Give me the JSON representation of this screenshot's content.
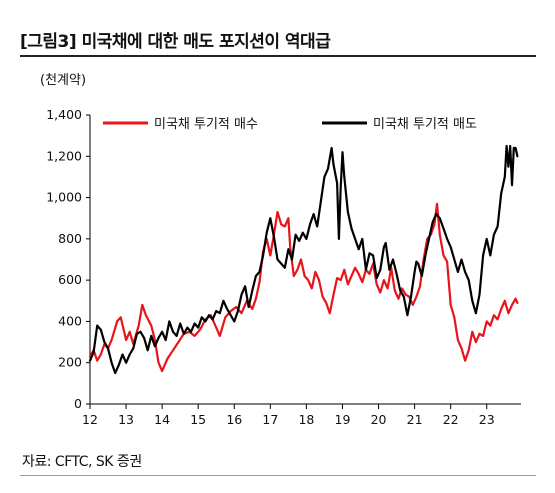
{
  "title": "[그림3] 미국채에 대한 매도 포지션이 역대급",
  "source": "자료: CFTC, SK 증권",
  "chart_data": {
    "type": "line",
    "unit_label": "(천계약)",
    "ylim": [
      0,
      1400
    ],
    "yticks": [
      0,
      200,
      400,
      600,
      800,
      "1,000",
      "1,200",
      "1,400"
    ],
    "xlim": [
      12,
      23.95
    ],
    "xticks": [
      "12",
      "13",
      "14",
      "15",
      "16",
      "17",
      "18",
      "19",
      "20",
      "21",
      "22",
      "23"
    ],
    "legend_position": "top",
    "series": [
      {
        "name": "미국채 투기적 매수",
        "color": "#e8141b",
        "points": [
          [
            12.0,
            230
          ],
          [
            12.1,
            260
          ],
          [
            12.2,
            210
          ],
          [
            12.3,
            240
          ],
          [
            12.4,
            290
          ],
          [
            12.5,
            270
          ],
          [
            12.6,
            310
          ],
          [
            12.75,
            400
          ],
          [
            12.85,
            420
          ],
          [
            13.0,
            310
          ],
          [
            13.1,
            350
          ],
          [
            13.2,
            290
          ],
          [
            13.35,
            380
          ],
          [
            13.45,
            480
          ],
          [
            13.55,
            430
          ],
          [
            13.7,
            380
          ],
          [
            13.8,
            310
          ],
          [
            13.9,
            200
          ],
          [
            14.0,
            160
          ],
          [
            14.15,
            220
          ],
          [
            14.3,
            260
          ],
          [
            14.45,
            300
          ],
          [
            14.6,
            340
          ],
          [
            14.75,
            350
          ],
          [
            14.9,
            330
          ],
          [
            15.05,
            360
          ],
          [
            15.2,
            410
          ],
          [
            15.35,
            430
          ],
          [
            15.5,
            370
          ],
          [
            15.6,
            330
          ],
          [
            15.75,
            420
          ],
          [
            15.9,
            450
          ],
          [
            16.05,
            470
          ],
          [
            16.2,
            440
          ],
          [
            16.35,
            500
          ],
          [
            16.5,
            460
          ],
          [
            16.6,
            510
          ],
          [
            16.7,
            590
          ],
          [
            16.8,
            740
          ],
          [
            16.9,
            800
          ],
          [
            17.0,
            720
          ],
          [
            17.1,
            820
          ],
          [
            17.2,
            930
          ],
          [
            17.3,
            870
          ],
          [
            17.4,
            860
          ],
          [
            17.5,
            900
          ],
          [
            17.55,
            760
          ],
          [
            17.65,
            620
          ],
          [
            17.75,
            650
          ],
          [
            17.85,
            700
          ],
          [
            17.95,
            620
          ],
          [
            18.05,
            600
          ],
          [
            18.15,
            560
          ],
          [
            18.25,
            640
          ],
          [
            18.35,
            600
          ],
          [
            18.45,
            520
          ],
          [
            18.55,
            490
          ],
          [
            18.65,
            440
          ],
          [
            18.75,
            530
          ],
          [
            18.85,
            610
          ],
          [
            18.95,
            600
          ],
          [
            19.05,
            650
          ],
          [
            19.15,
            580
          ],
          [
            19.25,
            620
          ],
          [
            19.35,
            660
          ],
          [
            19.45,
            630
          ],
          [
            19.55,
            590
          ],
          [
            19.65,
            650
          ],
          [
            19.75,
            630
          ],
          [
            19.85,
            680
          ],
          [
            19.95,
            580
          ],
          [
            20.05,
            540
          ],
          [
            20.15,
            600
          ],
          [
            20.25,
            560
          ],
          [
            20.35,
            660
          ],
          [
            20.45,
            550
          ],
          [
            20.55,
            510
          ],
          [
            20.65,
            560
          ],
          [
            20.75,
            530
          ],
          [
            20.85,
            520
          ],
          [
            20.95,
            480
          ],
          [
            21.05,
            520
          ],
          [
            21.15,
            570
          ],
          [
            21.25,
            700
          ],
          [
            21.35,
            800
          ],
          [
            21.45,
            820
          ],
          [
            21.55,
            870
          ],
          [
            21.62,
            970
          ],
          [
            21.7,
            820
          ],
          [
            21.8,
            720
          ],
          [
            21.9,
            690
          ],
          [
            22.0,
            480
          ],
          [
            22.1,
            420
          ],
          [
            22.2,
            310
          ],
          [
            22.3,
            270
          ],
          [
            22.4,
            210
          ],
          [
            22.5,
            260
          ],
          [
            22.6,
            350
          ],
          [
            22.7,
            300
          ],
          [
            22.8,
            340
          ],
          [
            22.9,
            330
          ],
          [
            23.0,
            400
          ],
          [
            23.1,
            380
          ],
          [
            23.2,
            430
          ],
          [
            23.3,
            410
          ],
          [
            23.4,
            460
          ],
          [
            23.5,
            500
          ],
          [
            23.6,
            440
          ],
          [
            23.7,
            480
          ],
          [
            23.8,
            510
          ],
          [
            23.85,
            490
          ]
        ]
      },
      {
        "name": "미국채 투기적 매도",
        "color": "#000000",
        "points": [
          [
            12.0,
            210
          ],
          [
            12.1,
            250
          ],
          [
            12.2,
            380
          ],
          [
            12.3,
            360
          ],
          [
            12.4,
            300
          ],
          [
            12.5,
            270
          ],
          [
            12.6,
            200
          ],
          [
            12.7,
            150
          ],
          [
            12.8,
            190
          ],
          [
            12.9,
            240
          ],
          [
            13.0,
            200
          ],
          [
            13.1,
            240
          ],
          [
            13.2,
            270
          ],
          [
            13.3,
            340
          ],
          [
            13.4,
            350
          ],
          [
            13.5,
            320
          ],
          [
            13.6,
            260
          ],
          [
            13.7,
            330
          ],
          [
            13.8,
            280
          ],
          [
            13.9,
            320
          ],
          [
            14.0,
            350
          ],
          [
            14.1,
            310
          ],
          [
            14.2,
            400
          ],
          [
            14.3,
            350
          ],
          [
            14.4,
            330
          ],
          [
            14.5,
            390
          ],
          [
            14.6,
            340
          ],
          [
            14.7,
            370
          ],
          [
            14.8,
            350
          ],
          [
            14.9,
            390
          ],
          [
            15.0,
            370
          ],
          [
            15.1,
            420
          ],
          [
            15.2,
            400
          ],
          [
            15.3,
            430
          ],
          [
            15.4,
            410
          ],
          [
            15.5,
            450
          ],
          [
            15.6,
            440
          ],
          [
            15.7,
            500
          ],
          [
            15.8,
            460
          ],
          [
            15.9,
            430
          ],
          [
            16.0,
            400
          ],
          [
            16.1,
            450
          ],
          [
            16.2,
            530
          ],
          [
            16.3,
            570
          ],
          [
            16.4,
            470
          ],
          [
            16.5,
            550
          ],
          [
            16.6,
            620
          ],
          [
            16.7,
            640
          ],
          [
            16.8,
            720
          ],
          [
            16.9,
            830
          ],
          [
            17.0,
            900
          ],
          [
            17.1,
            810
          ],
          [
            17.2,
            700
          ],
          [
            17.3,
            680
          ],
          [
            17.4,
            660
          ],
          [
            17.5,
            750
          ],
          [
            17.6,
            700
          ],
          [
            17.7,
            820
          ],
          [
            17.8,
            790
          ],
          [
            17.9,
            830
          ],
          [
            18.0,
            800
          ],
          [
            18.1,
            870
          ],
          [
            18.2,
            920
          ],
          [
            18.3,
            860
          ],
          [
            18.4,
            980
          ],
          [
            18.5,
            1100
          ],
          [
            18.6,
            1140
          ],
          [
            18.7,
            1240
          ],
          [
            18.75,
            1160
          ],
          [
            18.85,
            1070
          ],
          [
            18.9,
            800
          ],
          [
            18.95,
            1050
          ],
          [
            19.0,
            1220
          ],
          [
            19.05,
            1100
          ],
          [
            19.15,
            930
          ],
          [
            19.25,
            850
          ],
          [
            19.35,
            800
          ],
          [
            19.45,
            750
          ],
          [
            19.55,
            800
          ],
          [
            19.65,
            650
          ],
          [
            19.75,
            730
          ],
          [
            19.85,
            720
          ],
          [
            19.95,
            610
          ],
          [
            20.05,
            650
          ],
          [
            20.15,
            760
          ],
          [
            20.2,
            780
          ],
          [
            20.3,
            650
          ],
          [
            20.4,
            700
          ],
          [
            20.5,
            630
          ],
          [
            20.6,
            550
          ],
          [
            20.7,
            520
          ],
          [
            20.8,
            430
          ],
          [
            20.9,
            520
          ],
          [
            21.0,
            640
          ],
          [
            21.05,
            690
          ],
          [
            21.1,
            680
          ],
          [
            21.2,
            620
          ],
          [
            21.3,
            720
          ],
          [
            21.4,
            800
          ],
          [
            21.5,
            880
          ],
          [
            21.6,
            920
          ],
          [
            21.7,
            900
          ],
          [
            21.8,
            850
          ],
          [
            21.9,
            800
          ],
          [
            22.0,
            760
          ],
          [
            22.1,
            700
          ],
          [
            22.2,
            640
          ],
          [
            22.3,
            700
          ],
          [
            22.4,
            640
          ],
          [
            22.5,
            600
          ],
          [
            22.6,
            500
          ],
          [
            22.7,
            440
          ],
          [
            22.8,
            530
          ],
          [
            22.9,
            720
          ],
          [
            23.0,
            800
          ],
          [
            23.1,
            720
          ],
          [
            23.2,
            820
          ],
          [
            23.3,
            860
          ],
          [
            23.4,
            1020
          ],
          [
            23.5,
            1100
          ],
          [
            23.55,
            1250
          ],
          [
            23.6,
            1150
          ],
          [
            23.65,
            1250
          ],
          [
            23.7,
            1060
          ],
          [
            23.75,
            1240
          ],
          [
            23.8,
            1240
          ],
          [
            23.85,
            1200
          ]
        ]
      }
    ]
  }
}
